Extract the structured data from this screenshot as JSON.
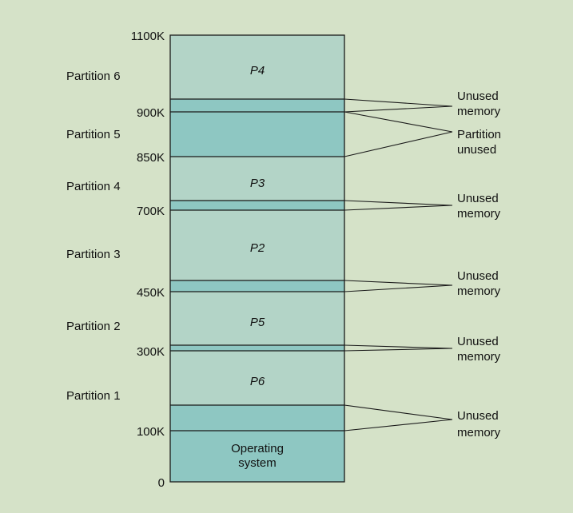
{
  "addresses": [
    "1100K",
    "900K",
    "850K",
    "700K",
    "450K",
    "300K",
    "100K",
    "0"
  ],
  "partitions": [
    "Partition 6",
    "Partition 5",
    "Partition 4",
    "Partition 3",
    "Partition 2",
    "Partition 1"
  ],
  "processes": [
    "P4",
    "P3",
    "P2",
    "P5",
    "P6"
  ],
  "os_label": [
    "Operating",
    "system"
  ],
  "callouts": {
    "unused_memory": [
      "Unused",
      "memory"
    ],
    "partition_unused": [
      "Partition",
      "unused"
    ]
  },
  "colors": {
    "background": "#d5e2c8",
    "used": "#b3d4c7",
    "unused": "#8ec7c2",
    "line": "#1a1a1a"
  }
}
